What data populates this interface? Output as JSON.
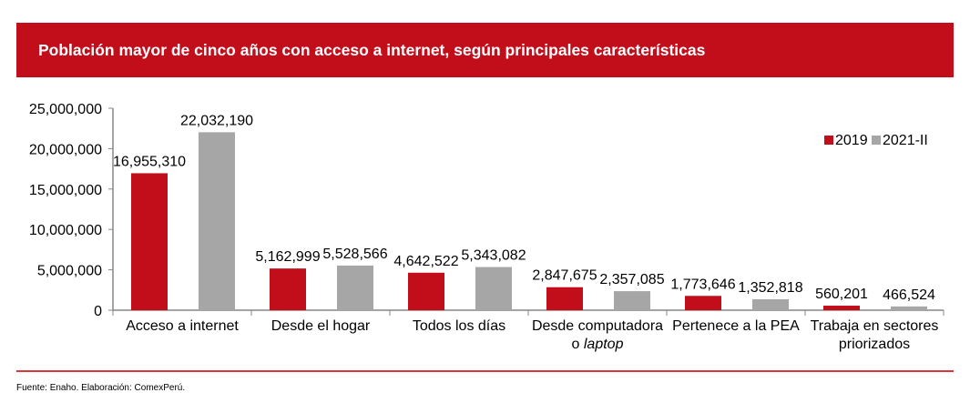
{
  "header": {
    "title": "Población mayor de cinco años con acceso a internet, según principales características"
  },
  "footer": {
    "source": "Fuente: Enaho. Elaboración: ComexPerú."
  },
  "chart_data": {
    "type": "bar",
    "title": "Población mayor de cinco años con acceso a internet, según principales características",
    "categories": [
      [
        "Acceso a internet"
      ],
      [
        "Desde el hogar"
      ],
      [
        "Todos los días"
      ],
      [
        "Desde computadora",
        "o ",
        "laptop"
      ],
      [
        "Pertenece a la PEA"
      ],
      [
        "Trabaja en sectores",
        "priorizados"
      ]
    ],
    "series": [
      {
        "name": "2019",
        "color": "#c20e1a",
        "values": [
          16955310,
          5162999,
          4642522,
          2847675,
          1773646,
          560201
        ],
        "labels": [
          "16,955,310",
          "5,162,999",
          "4,642,522",
          "2,847,675",
          "1,773,646",
          "560,201"
        ]
      },
      {
        "name": "2021-II",
        "color": "#a6a6a6",
        "values": [
          22032190,
          5528566,
          5343082,
          2357085,
          1352818,
          466524
        ],
        "labels": [
          "22,032,190",
          "5,528,566",
          "5,343,082",
          "2,357,085",
          "1,352,818",
          "466,524"
        ]
      }
    ],
    "ylim": [
      0,
      25000000
    ],
    "yticks": [
      "0",
      "5,000,000",
      "10,000,000",
      "15,000,000",
      "20,000,000",
      "25,000,000"
    ],
    "legend": "top-right"
  }
}
